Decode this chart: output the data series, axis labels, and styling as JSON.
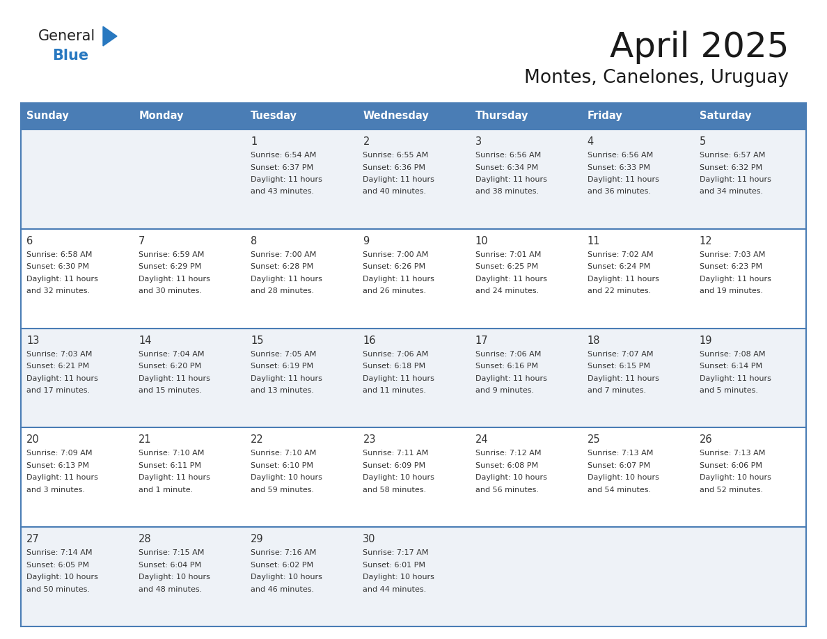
{
  "title": "April 2025",
  "subtitle": "Montes, Canelones, Uruguay",
  "days_of_week": [
    "Sunday",
    "Monday",
    "Tuesday",
    "Wednesday",
    "Thursday",
    "Friday",
    "Saturday"
  ],
  "header_bg": "#4a7db5",
  "header_text": "#ffffff",
  "row_bg_odd": "#eef2f7",
  "row_bg_even": "#ffffff",
  "cell_text_color": "#333333",
  "day_num_color": "#333333",
  "grid_line_color": "#4a7db5",
  "logo_general_color": "#222222",
  "logo_blue_color": "#2878c0",
  "logo_triangle_color": "#2878c0",
  "title_color": "#1a1a1a",
  "subtitle_color": "#1a1a1a",
  "calendar_data": [
    [
      {
        "day": "",
        "sunrise": "",
        "sunset": "",
        "daylight_line1": "",
        "daylight_line2": ""
      },
      {
        "day": "",
        "sunrise": "",
        "sunset": "",
        "daylight_line1": "",
        "daylight_line2": ""
      },
      {
        "day": "1",
        "sunrise": "Sunrise: 6:54 AM",
        "sunset": "Sunset: 6:37 PM",
        "daylight_line1": "Daylight: 11 hours",
        "daylight_line2": "and 43 minutes."
      },
      {
        "day": "2",
        "sunrise": "Sunrise: 6:55 AM",
        "sunset": "Sunset: 6:36 PM",
        "daylight_line1": "Daylight: 11 hours",
        "daylight_line2": "and 40 minutes."
      },
      {
        "day": "3",
        "sunrise": "Sunrise: 6:56 AM",
        "sunset": "Sunset: 6:34 PM",
        "daylight_line1": "Daylight: 11 hours",
        "daylight_line2": "and 38 minutes."
      },
      {
        "day": "4",
        "sunrise": "Sunrise: 6:56 AM",
        "sunset": "Sunset: 6:33 PM",
        "daylight_line1": "Daylight: 11 hours",
        "daylight_line2": "and 36 minutes."
      },
      {
        "day": "5",
        "sunrise": "Sunrise: 6:57 AM",
        "sunset": "Sunset: 6:32 PM",
        "daylight_line1": "Daylight: 11 hours",
        "daylight_line2": "and 34 minutes."
      }
    ],
    [
      {
        "day": "6",
        "sunrise": "Sunrise: 6:58 AM",
        "sunset": "Sunset: 6:30 PM",
        "daylight_line1": "Daylight: 11 hours",
        "daylight_line2": "and 32 minutes."
      },
      {
        "day": "7",
        "sunrise": "Sunrise: 6:59 AM",
        "sunset": "Sunset: 6:29 PM",
        "daylight_line1": "Daylight: 11 hours",
        "daylight_line2": "and 30 minutes."
      },
      {
        "day": "8",
        "sunrise": "Sunrise: 7:00 AM",
        "sunset": "Sunset: 6:28 PM",
        "daylight_line1": "Daylight: 11 hours",
        "daylight_line2": "and 28 minutes."
      },
      {
        "day": "9",
        "sunrise": "Sunrise: 7:00 AM",
        "sunset": "Sunset: 6:26 PM",
        "daylight_line1": "Daylight: 11 hours",
        "daylight_line2": "and 26 minutes."
      },
      {
        "day": "10",
        "sunrise": "Sunrise: 7:01 AM",
        "sunset": "Sunset: 6:25 PM",
        "daylight_line1": "Daylight: 11 hours",
        "daylight_line2": "and 24 minutes."
      },
      {
        "day": "11",
        "sunrise": "Sunrise: 7:02 AM",
        "sunset": "Sunset: 6:24 PM",
        "daylight_line1": "Daylight: 11 hours",
        "daylight_line2": "and 22 minutes."
      },
      {
        "day": "12",
        "sunrise": "Sunrise: 7:03 AM",
        "sunset": "Sunset: 6:23 PM",
        "daylight_line1": "Daylight: 11 hours",
        "daylight_line2": "and 19 minutes."
      }
    ],
    [
      {
        "day": "13",
        "sunrise": "Sunrise: 7:03 AM",
        "sunset": "Sunset: 6:21 PM",
        "daylight_line1": "Daylight: 11 hours",
        "daylight_line2": "and 17 minutes."
      },
      {
        "day": "14",
        "sunrise": "Sunrise: 7:04 AM",
        "sunset": "Sunset: 6:20 PM",
        "daylight_line1": "Daylight: 11 hours",
        "daylight_line2": "and 15 minutes."
      },
      {
        "day": "15",
        "sunrise": "Sunrise: 7:05 AM",
        "sunset": "Sunset: 6:19 PM",
        "daylight_line1": "Daylight: 11 hours",
        "daylight_line2": "and 13 minutes."
      },
      {
        "day": "16",
        "sunrise": "Sunrise: 7:06 AM",
        "sunset": "Sunset: 6:18 PM",
        "daylight_line1": "Daylight: 11 hours",
        "daylight_line2": "and 11 minutes."
      },
      {
        "day": "17",
        "sunrise": "Sunrise: 7:06 AM",
        "sunset": "Sunset: 6:16 PM",
        "daylight_line1": "Daylight: 11 hours",
        "daylight_line2": "and 9 minutes."
      },
      {
        "day": "18",
        "sunrise": "Sunrise: 7:07 AM",
        "sunset": "Sunset: 6:15 PM",
        "daylight_line1": "Daylight: 11 hours",
        "daylight_line2": "and 7 minutes."
      },
      {
        "day": "19",
        "sunrise": "Sunrise: 7:08 AM",
        "sunset": "Sunset: 6:14 PM",
        "daylight_line1": "Daylight: 11 hours",
        "daylight_line2": "and 5 minutes."
      }
    ],
    [
      {
        "day": "20",
        "sunrise": "Sunrise: 7:09 AM",
        "sunset": "Sunset: 6:13 PM",
        "daylight_line1": "Daylight: 11 hours",
        "daylight_line2": "and 3 minutes."
      },
      {
        "day": "21",
        "sunrise": "Sunrise: 7:10 AM",
        "sunset": "Sunset: 6:11 PM",
        "daylight_line1": "Daylight: 11 hours",
        "daylight_line2": "and 1 minute."
      },
      {
        "day": "22",
        "sunrise": "Sunrise: 7:10 AM",
        "sunset": "Sunset: 6:10 PM",
        "daylight_line1": "Daylight: 10 hours",
        "daylight_line2": "and 59 minutes."
      },
      {
        "day": "23",
        "sunrise": "Sunrise: 7:11 AM",
        "sunset": "Sunset: 6:09 PM",
        "daylight_line1": "Daylight: 10 hours",
        "daylight_line2": "and 58 minutes."
      },
      {
        "day": "24",
        "sunrise": "Sunrise: 7:12 AM",
        "sunset": "Sunset: 6:08 PM",
        "daylight_line1": "Daylight: 10 hours",
        "daylight_line2": "and 56 minutes."
      },
      {
        "day": "25",
        "sunrise": "Sunrise: 7:13 AM",
        "sunset": "Sunset: 6:07 PM",
        "daylight_line1": "Daylight: 10 hours",
        "daylight_line2": "and 54 minutes."
      },
      {
        "day": "26",
        "sunrise": "Sunrise: 7:13 AM",
        "sunset": "Sunset: 6:06 PM",
        "daylight_line1": "Daylight: 10 hours",
        "daylight_line2": "and 52 minutes."
      }
    ],
    [
      {
        "day": "27",
        "sunrise": "Sunrise: 7:14 AM",
        "sunset": "Sunset: 6:05 PM",
        "daylight_line1": "Daylight: 10 hours",
        "daylight_line2": "and 50 minutes."
      },
      {
        "day": "28",
        "sunrise": "Sunrise: 7:15 AM",
        "sunset": "Sunset: 6:04 PM",
        "daylight_line1": "Daylight: 10 hours",
        "daylight_line2": "and 48 minutes."
      },
      {
        "day": "29",
        "sunrise": "Sunrise: 7:16 AM",
        "sunset": "Sunset: 6:02 PM",
        "daylight_line1": "Daylight: 10 hours",
        "daylight_line2": "and 46 minutes."
      },
      {
        "day": "30",
        "sunrise": "Sunrise: 7:17 AM",
        "sunset": "Sunset: 6:01 PM",
        "daylight_line1": "Daylight: 10 hours",
        "daylight_line2": "and 44 minutes."
      },
      {
        "day": "",
        "sunrise": "",
        "sunset": "",
        "daylight_line1": "",
        "daylight_line2": ""
      },
      {
        "day": "",
        "sunrise": "",
        "sunset": "",
        "daylight_line1": "",
        "daylight_line2": ""
      },
      {
        "day": "",
        "sunrise": "",
        "sunset": "",
        "daylight_line1": "",
        "daylight_line2": ""
      }
    ]
  ]
}
